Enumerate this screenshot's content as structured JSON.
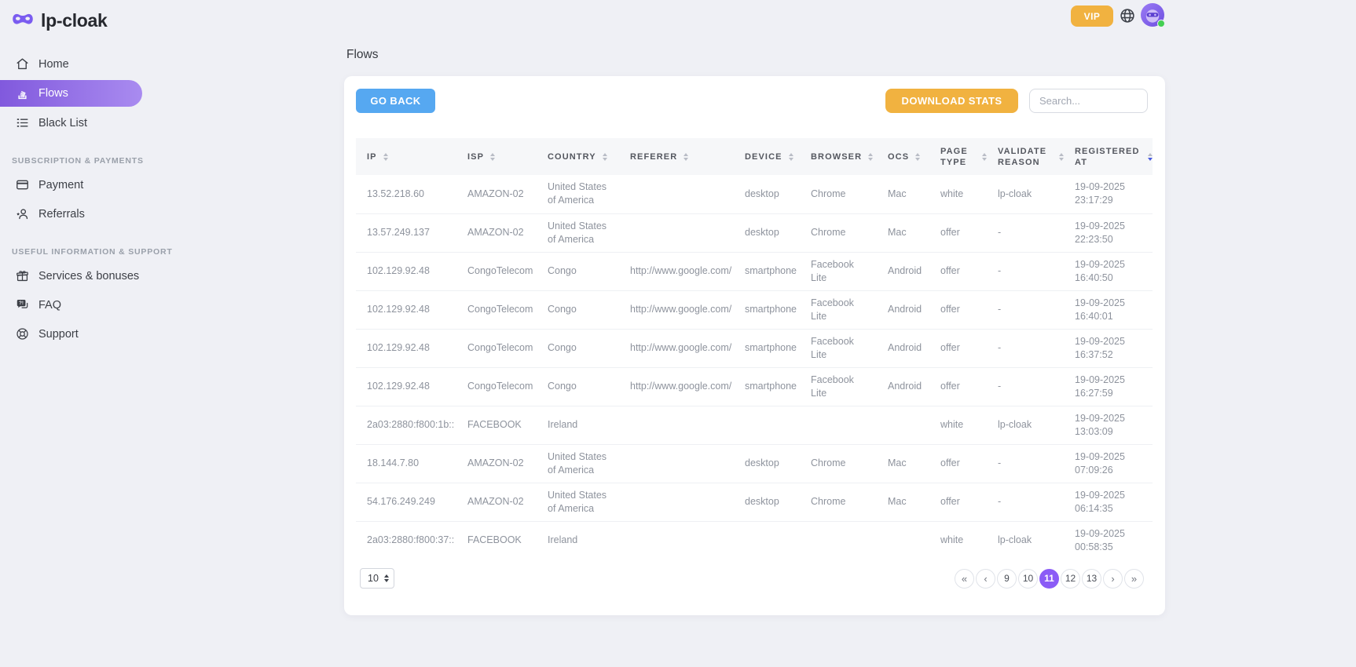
{
  "brand": {
    "name": "lp-cloak"
  },
  "topbar": {
    "vip_label": "VIP"
  },
  "sidebar": {
    "groups": [
      {
        "title": "",
        "items": [
          {
            "label": "Home",
            "icon": "home-icon",
            "active": false
          },
          {
            "label": "Flows",
            "icon": "flows-icon",
            "active": true
          },
          {
            "label": "Black List",
            "icon": "black-list-icon",
            "active": false
          }
        ]
      },
      {
        "title": "SUBSCRIPTION & PAYMENTS",
        "items": [
          {
            "label": "Payment",
            "icon": "credit-card-icon",
            "active": false
          },
          {
            "label": "Referrals",
            "icon": "referrals-icon",
            "active": false
          }
        ]
      },
      {
        "title": "USEFUL INFORMATION & SUPPORT",
        "items": [
          {
            "label": "Services & bonuses",
            "icon": "gift-icon",
            "active": false
          },
          {
            "label": "FAQ",
            "icon": "faq-icon",
            "active": false
          },
          {
            "label": "Support",
            "icon": "support-icon",
            "active": false
          }
        ]
      }
    ]
  },
  "page": {
    "title": "Flows"
  },
  "toolbar": {
    "go_back_label": "GO BACK",
    "download_label": "DOWNLOAD STATS",
    "search_placeholder": "Search..."
  },
  "table": {
    "columns": [
      {
        "label": "IP"
      },
      {
        "label": "ISP"
      },
      {
        "label": "COUNTRY"
      },
      {
        "label": "REFERER"
      },
      {
        "label": "DEVICE"
      },
      {
        "label": "BROWSER"
      },
      {
        "label": "OCS"
      },
      {
        "label": "PAGE TYPE"
      },
      {
        "label": "VALIDATE REASON"
      },
      {
        "label": "REGISTERED AT",
        "sorted": "desc"
      }
    ],
    "rows": [
      [
        "13.52.218.60",
        "AMAZON-02",
        "United States of America",
        "",
        "desktop",
        "Chrome",
        "Mac",
        "white",
        "lp-cloak",
        "19-09-2025 23:17:29"
      ],
      [
        "13.57.249.137",
        "AMAZON-02",
        "United States of America",
        "",
        "desktop",
        "Chrome",
        "Mac",
        "offer",
        "-",
        "19-09-2025 22:23:50"
      ],
      [
        "102.129.92.48",
        "CongoTelecom",
        "Congo",
        "http://www.google.com/",
        "smartphone",
        "Facebook Lite",
        "Android",
        "offer",
        "-",
        "19-09-2025 16:40:50"
      ],
      [
        "102.129.92.48",
        "CongoTelecom",
        "Congo",
        "http://www.google.com/",
        "smartphone",
        "Facebook Lite",
        "Android",
        "offer",
        "-",
        "19-09-2025 16:40:01"
      ],
      [
        "102.129.92.48",
        "CongoTelecom",
        "Congo",
        "http://www.google.com/",
        "smartphone",
        "Facebook Lite",
        "Android",
        "offer",
        "-",
        "19-09-2025 16:37:52"
      ],
      [
        "102.129.92.48",
        "CongoTelecom",
        "Congo",
        "http://www.google.com/",
        "smartphone",
        "Facebook Lite",
        "Android",
        "offer",
        "-",
        "19-09-2025 16:27:59"
      ],
      [
        "2a03:2880:f800:1b::",
        "FACEBOOK",
        "Ireland",
        "",
        "",
        "",
        "",
        "white",
        "lp-cloak",
        "19-09-2025 13:03:09"
      ],
      [
        "18.144.7.80",
        "AMAZON-02",
        "United States of America",
        "",
        "desktop",
        "Chrome",
        "Mac",
        "offer",
        "-",
        "19-09-2025 07:09:26"
      ],
      [
        "54.176.249.249",
        "AMAZON-02",
        "United States of America",
        "",
        "desktop",
        "Chrome",
        "Mac",
        "offer",
        "-",
        "19-09-2025 06:14:35"
      ],
      [
        "2a03:2880:f800:37::",
        "FACEBOOK",
        "Ireland",
        "",
        "",
        "",
        "",
        "white",
        "lp-cloak",
        "19-09-2025 00:58:35"
      ]
    ]
  },
  "pagination": {
    "page_size": "10",
    "first": "«",
    "prev": "‹",
    "pages": [
      "9",
      "10",
      "11",
      "12",
      "13"
    ],
    "active_page": "11",
    "next": "›",
    "last": "»"
  },
  "colors": {
    "accent_purple": "#8b5cf6",
    "brand_purple": "#7a5cf0",
    "amber": "#f1b240",
    "blue": "#56a8f1",
    "online_green": "#43cf52"
  }
}
